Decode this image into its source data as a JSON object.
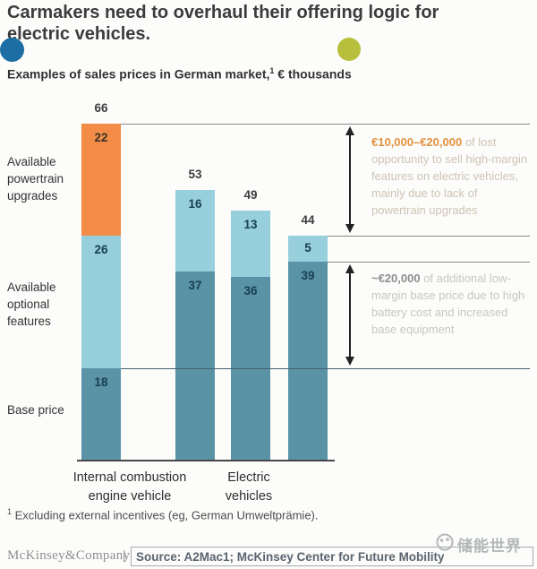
{
  "title": {
    "line1": "Carmakers need to overhaul their offering logic for",
    "line2": "electric vehicles."
  },
  "subtitle": {
    "prefix": "Examples of sales prices in German market,",
    "sup": "1",
    "suffix": " € thousands"
  },
  "chart_data": {
    "type": "bar",
    "stacked": true,
    "unit": "€ thousands",
    "title": "Examples of sales prices in German market, € thousands",
    "categories": [
      "Internal combustion engine vehicle",
      "Electric vehicle",
      "Electric vehicle",
      "Electric vehicle"
    ],
    "series": [
      {
        "name": "Base price",
        "color": "#5a92a6",
        "label_color": "#17404f",
        "values": [
          18,
          37,
          36,
          39
        ]
      },
      {
        "name": "Available optional features",
        "color": "#98cfdd",
        "label_color": "#17404f",
        "values": [
          26,
          16,
          13,
          5
        ]
      },
      {
        "name": "Available powertrain upgrades",
        "color": "#f28c46",
        "label_color": "#3d342a",
        "values": [
          22,
          null,
          null,
          null
        ]
      }
    ],
    "totals": [
      66,
      53,
      49,
      44
    ],
    "reference_lines": [
      66,
      44,
      39,
      18
    ],
    "value_axis_hidden": true,
    "x_group_labels": [
      {
        "line1": "Internal combustion",
        "line2": "engine vehicle"
      },
      {
        "line1": "Electric",
        "line2": "vehicles"
      }
    ]
  },
  "row_labels": {
    "powertrain": "Available powertrain upgrades",
    "optional": "Available optional features",
    "base": "Base price"
  },
  "annotations": [
    {
      "highlight": "€10,000–€20,000",
      "body": " of lost opportunity to sell high-margin features on electric vehicles, mainly due to lack of powertrain upgrades",
      "from_value": 44,
      "to_value": 66,
      "highlight_color": "#e2923e"
    },
    {
      "highlight": "~€20,000",
      "body": " of additional low-margin base price due to high battery cost and increased base equipment",
      "from_value": 18,
      "to_value": 39,
      "highlight_color": "#8e8e8e"
    }
  ],
  "footnote": {
    "sup": "1",
    "text": " Excluding external incentives (eg, German Umweltprämie)."
  },
  "footer": {
    "brand": "McKinsey&Company",
    "separator": "|",
    "source": "Source: A2Mac1; McKinsey Center for Future Mobility"
  },
  "watermark": {
    "text": "储能世界"
  },
  "colors": {
    "blue_dot": "#1c6ea4",
    "olive_dot": "#b8bf3c",
    "powertrain_orange": "#f28c46",
    "optional_light_teal": "#98cfdd",
    "base_dark_teal": "#5a92a6",
    "annotation1_highlight": "#e2923e",
    "annotation2_highlight": "#8e8e8e"
  }
}
